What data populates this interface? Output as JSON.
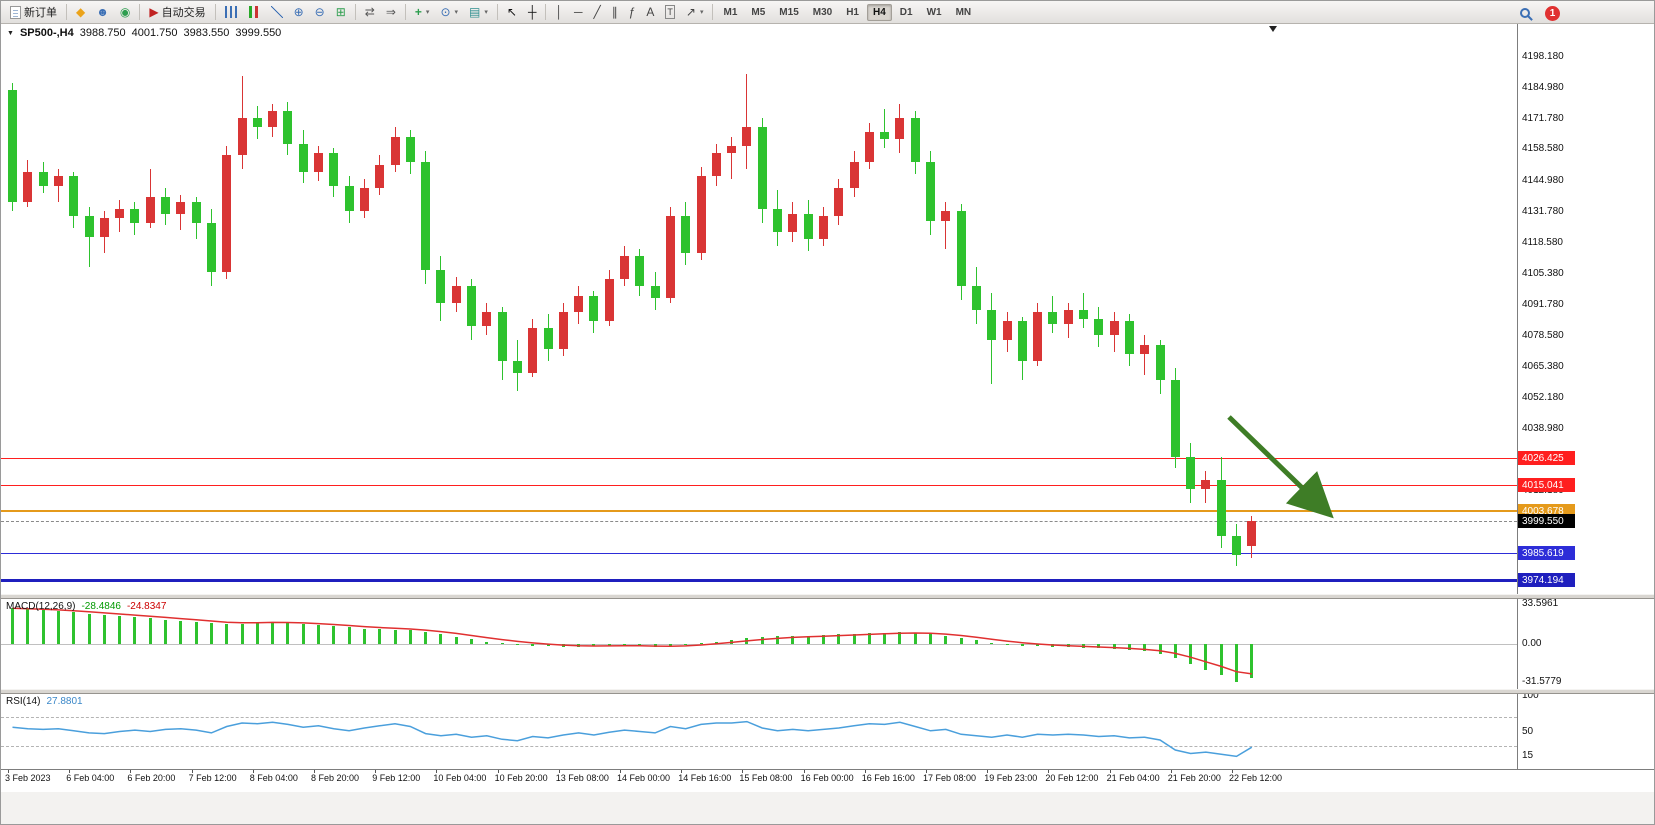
{
  "toolbar": {
    "new_order_label": "新订单",
    "auto_trading_label": "自动交易",
    "timeframes": [
      "M1",
      "M5",
      "M15",
      "M30",
      "H1",
      "H4",
      "D1",
      "W1",
      "MN"
    ],
    "active_timeframe": "H4",
    "notification_count": "1"
  },
  "chart": {
    "header": {
      "symbol_period": "SP500-,H4",
      "open": "3988.750",
      "high": "4001.750",
      "low": "3983.550",
      "close": "3999.550"
    },
    "price_axis_labels": [
      "4198.180",
      "4184.980",
      "4171.780",
      "4158.580",
      "4144.980",
      "4131.780",
      "4118.580",
      "4105.380",
      "4091.780",
      "4078.580",
      "4065.380",
      "4052.180",
      "4038.980",
      "4012.180"
    ],
    "time_axis_labels": [
      "3 Feb 2023",
      "6 Feb 04:00",
      "6 Feb 20:00",
      "7 Feb 12:00",
      "8 Feb 04:00",
      "8 Feb 20:00",
      "9 Feb 12:00",
      "10 Feb 04:00",
      "10 Feb 20:00",
      "13 Feb 08:00",
      "14 Feb 00:00",
      "14 Feb 16:00",
      "15 Feb 08:00",
      "16 Feb 00:00",
      "16 Feb 16:00",
      "17 Feb 08:00",
      "19 Feb 23:00",
      "20 Feb 12:00",
      "21 Feb 04:00",
      "21 Feb 20:00",
      "22 Feb 12:00"
    ],
    "horizontal_lines": [
      {
        "price": 4026.425,
        "label": "4026.425",
        "color": "#ff1f1f",
        "thickness": 1
      },
      {
        "price": 4015.041,
        "label": "4015.041",
        "color": "#ff1f1f",
        "thickness": 1
      },
      {
        "price": 4003.678,
        "label": "4003.678",
        "color": "#e59a1b",
        "thickness": 2
      },
      {
        "price": 3985.619,
        "label": "3985.619",
        "color": "#2d2dd8",
        "thickness": 1
      },
      {
        "price": 3974.194,
        "label": "3974.194",
        "color": "#1f1fbe",
        "thickness": 3
      }
    ],
    "current_price": {
      "price": 3999.55,
      "label": "3999.550",
      "badge_color": "#000000"
    },
    "annotation_arrow": {
      "color": "#3e7d26"
    }
  },
  "chart_data": {
    "type": "candlestick",
    "symbol": "SP500-",
    "timeframe": "H4",
    "bull_color": "#d93535",
    "bear_color": "#2ec22e",
    "candles_ohlc": [
      [
        4184,
        4187,
        4132,
        4136
      ],
      [
        4136,
        4154,
        4134,
        4149
      ],
      [
        4149,
        4153,
        4140,
        4143
      ],
      [
        4143,
        4150,
        4136,
        4147
      ],
      [
        4147,
        4149,
        4125,
        4130
      ],
      [
        4130,
        4134,
        4108,
        4121
      ],
      [
        4121,
        4132,
        4114,
        4129
      ],
      [
        4129,
        4137,
        4123,
        4133
      ],
      [
        4133,
        4136,
        4122,
        4127
      ],
      [
        4127,
        4150,
        4125,
        4138
      ],
      [
        4138,
        4142,
        4126,
        4131
      ],
      [
        4131,
        4139,
        4124,
        4136
      ],
      [
        4136,
        4138,
        4120,
        4127
      ],
      [
        4127,
        4133,
        4100,
        4106
      ],
      [
        4106,
        4160,
        4103,
        4156
      ],
      [
        4156,
        4190,
        4150,
        4172
      ],
      [
        4172,
        4177,
        4163,
        4168
      ],
      [
        4168,
        4178,
        4164,
        4175
      ],
      [
        4175,
        4179,
        4156,
        4161
      ],
      [
        4161,
        4167,
        4144,
        4149
      ],
      [
        4149,
        4160,
        4145,
        4157
      ],
      [
        4157,
        4159,
        4138,
        4143
      ],
      [
        4143,
        4147,
        4127,
        4132
      ],
      [
        4132,
        4146,
        4129,
        4142
      ],
      [
        4142,
        4156,
        4139,
        4152
      ],
      [
        4152,
        4168,
        4149,
        4164
      ],
      [
        4164,
        4167,
        4148,
        4153
      ],
      [
        4153,
        4158,
        4101,
        4107
      ],
      [
        4107,
        4113,
        4085,
        4093
      ],
      [
        4093,
        4104,
        4089,
        4100
      ],
      [
        4100,
        4103,
        4077,
        4083
      ],
      [
        4083,
        4093,
        4079,
        4089
      ],
      [
        4089,
        4091,
        4060,
        4068
      ],
      [
        4068,
        4077,
        4055,
        4063
      ],
      [
        4063,
        4086,
        4061,
        4082
      ],
      [
        4082,
        4088,
        4068,
        4073
      ],
      [
        4073,
        4093,
        4070,
        4089
      ],
      [
        4089,
        4100,
        4084,
        4096
      ],
      [
        4096,
        4098,
        4080,
        4085
      ],
      [
        4085,
        4107,
        4083,
        4103
      ],
      [
        4103,
        4117,
        4100,
        4113
      ],
      [
        4113,
        4116,
        4096,
        4100
      ],
      [
        4100,
        4106,
        4090,
        4095
      ],
      [
        4095,
        4134,
        4093,
        4130
      ],
      [
        4130,
        4136,
        4109,
        4114
      ],
      [
        4114,
        4151,
        4111,
        4147
      ],
      [
        4147,
        4161,
        4143,
        4157
      ],
      [
        4157,
        4164,
        4146,
        4160
      ],
      [
        4160,
        4191,
        4150,
        4168
      ],
      [
        4168,
        4172,
        4127,
        4133
      ],
      [
        4133,
        4141,
        4117,
        4123
      ],
      [
        4123,
        4136,
        4119,
        4131
      ],
      [
        4131,
        4137,
        4115,
        4120
      ],
      [
        4120,
        4134,
        4117,
        4130
      ],
      [
        4130,
        4146,
        4126,
        4142
      ],
      [
        4142,
        4158,
        4138,
        4153
      ],
      [
        4153,
        4170,
        4150,
        4166
      ],
      [
        4166,
        4176,
        4159,
        4163
      ],
      [
        4163,
        4178,
        4157,
        4172
      ],
      [
        4172,
        4175,
        4148,
        4153
      ],
      [
        4153,
        4158,
        4122,
        4128
      ],
      [
        4128,
        4136,
        4116,
        4132
      ],
      [
        4132,
        4135,
        4094,
        4100
      ],
      [
        4100,
        4108,
        4084,
        4090
      ],
      [
        4090,
        4097,
        4058,
        4077
      ],
      [
        4077,
        4089,
        4072,
        4085
      ],
      [
        4085,
        4087,
        4060,
        4068
      ],
      [
        4068,
        4093,
        4066,
        4089
      ],
      [
        4089,
        4096,
        4080,
        4084
      ],
      [
        4084,
        4093,
        4078,
        4090
      ],
      [
        4090,
        4097,
        4082,
        4086
      ],
      [
        4086,
        4091,
        4074,
        4079
      ],
      [
        4079,
        4089,
        4072,
        4085
      ],
      [
        4085,
        4088,
        4066,
        4071
      ],
      [
        4071,
        4079,
        4062,
        4075
      ],
      [
        4075,
        4077,
        4054,
        4060
      ],
      [
        4060,
        4065,
        4022,
        4027
      ],
      [
        4027,
        4033,
        4007,
        4013
      ],
      [
        4013,
        4021,
        4007,
        4017
      ],
      [
        4017,
        4027,
        3988,
        3993
      ],
      [
        3993,
        3998,
        3980,
        3985
      ],
      [
        3988.75,
        4001.75,
        3983.55,
        3999.55
      ]
    ],
    "indicators": {
      "macd": {
        "label": "MACD(12,26,9)",
        "params": [
          12,
          26,
          9
        ],
        "value_main": "-28.4846",
        "value_signal": "-24.8347",
        "scale_labels": [
          "33.5961",
          "0.00",
          "-31.5779"
        ],
        "histogram_color": "#2ec22e",
        "signal_color": "#e03030",
        "histogram": [
          30,
          29,
          28.5,
          27.5,
          26.5,
          25.5,
          24.5,
          23.5,
          22.5,
          21.5,
          20.5,
          19.5,
          18.5,
          17.5,
          16.5,
          17,
          18,
          18.5,
          18,
          17,
          16,
          15,
          14,
          13,
          12.5,
          12,
          11.5,
          10,
          8,
          6,
          4,
          2,
          0.5,
          -0.5,
          -1.5,
          -2,
          -2.5,
          -2.5,
          -2,
          -1.5,
          -1,
          -1.5,
          -2.5,
          -2,
          -1,
          0.5,
          2,
          3.5,
          5,
          6,
          6.5,
          7,
          7,
          7.5,
          8,
          8.5,
          9,
          9.5,
          10,
          9.5,
          8.5,
          7,
          5,
          3,
          1,
          -0.5,
          -1.5,
          -2,
          -2.5,
          -2.5,
          -3,
          -3.5,
          -4,
          -5,
          -6,
          -8,
          -12,
          -17,
          -22,
          -26,
          -31.58,
          -28.48
        ]
      },
      "rsi": {
        "label": "RSI(14)",
        "period": 14,
        "value": "27.8801",
        "scale_labels": [
          "100",
          "50",
          "15"
        ],
        "levels": [
          70,
          30
        ],
        "line_color": "#4a9fdc",
        "values": [
          56,
          54,
          53,
          54,
          51,
          48,
          47,
          50,
          52,
          50,
          53,
          54,
          52,
          48,
          57,
          62,
          61,
          63,
          60,
          56,
          58,
          54,
          51,
          55,
          58,
          61,
          57,
          47,
          44,
          46,
          42,
          44,
          39,
          37,
          43,
          41,
          45,
          48,
          45,
          49,
          52,
          50,
          48,
          57,
          54,
          60,
          62,
          62,
          64,
          55,
          51,
          53,
          51,
          53,
          55,
          58,
          61,
          60,
          63,
          57,
          51,
          53,
          46,
          44,
          42,
          45,
          42,
          46,
          45,
          46,
          45,
          43,
          44,
          41,
          42,
          38,
          24,
          19,
          21,
          18,
          15,
          27.88
        ]
      }
    }
  }
}
